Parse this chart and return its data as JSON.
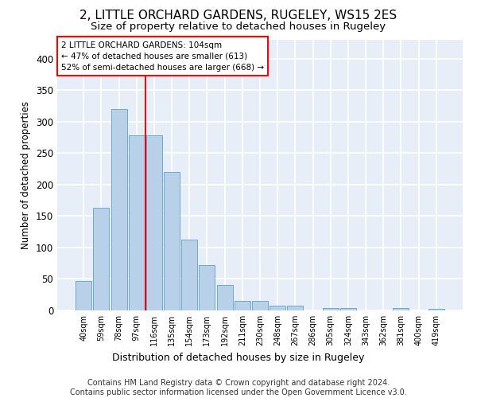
{
  "title": "2, LITTLE ORCHARD GARDENS, RUGELEY, WS15 2ES",
  "subtitle": "Size of property relative to detached houses in Rugeley",
  "xlabel": "Distribution of detached houses by size in Rugeley",
  "ylabel": "Number of detached properties",
  "categories": [
    "40sqm",
    "59sqm",
    "78sqm",
    "97sqm",
    "116sqm",
    "135sqm",
    "154sqm",
    "173sqm",
    "192sqm",
    "211sqm",
    "230sqm",
    "248sqm",
    "267sqm",
    "286sqm",
    "305sqm",
    "324sqm",
    "343sqm",
    "362sqm",
    "381sqm",
    "400sqm",
    "419sqm"
  ],
  "values": [
    47,
    163,
    320,
    278,
    278,
    220,
    113,
    72,
    40,
    15,
    15,
    8,
    7,
    0,
    4,
    4,
    0,
    0,
    4,
    0,
    3
  ],
  "bar_color": "#b8d0e8",
  "bar_edge_color": "#6aaad4",
  "red_line_x": 3.5,
  "annotation_text": "2 LITTLE ORCHARD GARDENS: 104sqm\n← 47% of detached houses are smaller (613)\n52% of semi-detached houses are larger (668) →",
  "annotation_box_color": "white",
  "annotation_box_edge": "red",
  "footer": "Contains HM Land Registry data © Crown copyright and database right 2024.\nContains public sector information licensed under the Open Government Licence v3.0.",
  "ylim": [
    0,
    430
  ],
  "yticks": [
    0,
    50,
    100,
    150,
    200,
    250,
    300,
    350,
    400
  ],
  "background_color": "#e8eef8",
  "grid_color": "white",
  "title_fontsize": 11,
  "subtitle_fontsize": 9.5,
  "footer_fontsize": 7
}
